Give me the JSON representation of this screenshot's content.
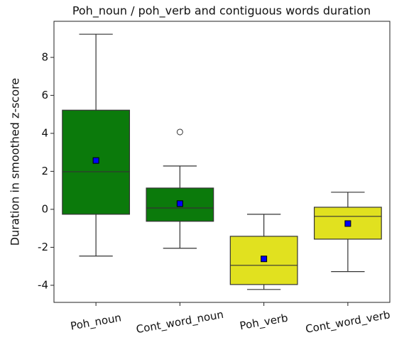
{
  "chart_data": {
    "type": "box",
    "title": "Poh_noun / poh_verb and contiguous words duration",
    "y_label": "Duration in smoothed z-score",
    "categories": [
      "Poh_noun",
      "Cont_word_noun",
      "Poh_verb",
      "Cont_word_verb"
    ],
    "colors": [
      "#0b7a0b",
      "#0b7a0b",
      "#e1e11f",
      "#e1e11f"
    ],
    "boxes": [
      {
        "whisker_low": -2.46,
        "q1": -0.26,
        "median": 1.98,
        "q3": 5.22,
        "whisker_high": 9.22,
        "mean": 2.57,
        "outliers": []
      },
      {
        "whisker_low": -2.05,
        "q1": -0.63,
        "median": 0.07,
        "q3": 1.12,
        "whisker_high": 2.28,
        "mean": 0.3,
        "outliers": [
          4.07
        ]
      },
      {
        "whisker_low": -4.22,
        "q1": -3.96,
        "median": -2.95,
        "q3": -1.42,
        "whisker_high": -0.26,
        "mean": -2.61,
        "outliers": []
      },
      {
        "whisker_low": -3.28,
        "q1": -1.57,
        "median": -0.37,
        "q3": 0.11,
        "whisker_high": 0.9,
        "mean": -0.75,
        "outliers": []
      }
    ],
    "mean_color": "#0000ff",
    "ylim": [
      -4.9,
      9.9
    ],
    "yticks": [
      -4,
      -2,
      0,
      2,
      4,
      6,
      8
    ]
  }
}
